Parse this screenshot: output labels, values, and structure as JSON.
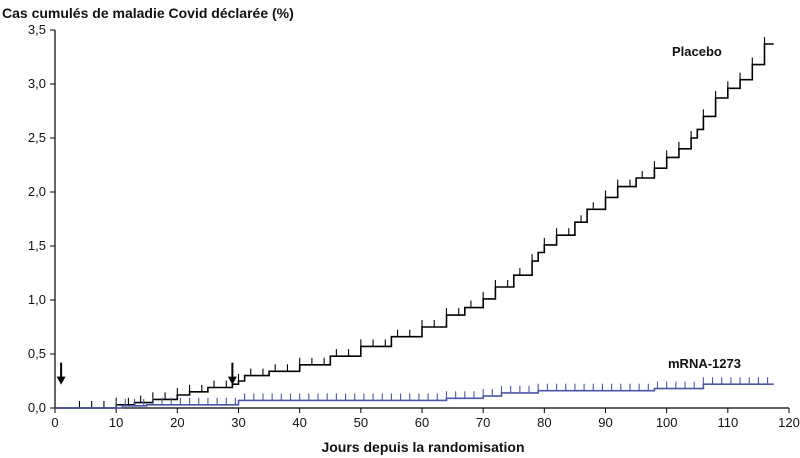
{
  "chart_data": {
    "type": "line",
    "title": "",
    "ylabel": "Cas cumulés de maladie Covid déclarée (%)",
    "xlabel": "Jours depuis la randomisation",
    "xlim": [
      0,
      120
    ],
    "ylim": [
      0,
      3.5
    ],
    "xticks": [
      0,
      10,
      20,
      30,
      40,
      50,
      60,
      70,
      80,
      90,
      100,
      110,
      120
    ],
    "yticks": [
      0,
      0.5,
      1.0,
      1.5,
      2.0,
      2.5,
      3.0,
      3.5
    ],
    "xtick_labels": [
      "0",
      "10",
      "20",
      "30",
      "40",
      "50",
      "60",
      "70",
      "80",
      "90",
      "100",
      "110",
      "120"
    ],
    "ytick_labels": [
      "0,0",
      "0,5",
      "1,0",
      "1,5",
      "2,0",
      "2,5",
      "3,0",
      "3,5"
    ],
    "grid": false,
    "annotations": [
      {
        "type": "arrow",
        "x": 1,
        "y": 0.42
      },
      {
        "type": "arrow",
        "x": 29,
        "y": 0.42
      }
    ],
    "series": [
      {
        "name": "Placebo",
        "color": "#000000",
        "step": "post",
        "x": [
          0,
          10,
          13,
          16,
          20,
          22,
          25,
          29,
          30,
          31,
          35,
          40,
          45,
          50,
          55,
          60,
          64,
          67,
          70,
          72,
          75,
          78,
          79,
          80,
          82,
          85,
          87,
          90,
          92,
          95,
          98,
          100,
          102,
          104,
          105,
          106,
          108,
          110,
          112,
          114,
          116,
          117.5
        ],
        "y": [
          0,
          0.03,
          0.05,
          0.08,
          0.12,
          0.15,
          0.19,
          0.22,
          0.25,
          0.3,
          0.34,
          0.4,
          0.48,
          0.57,
          0.66,
          0.75,
          0.86,
          0.93,
          1.01,
          1.12,
          1.23,
          1.36,
          1.44,
          1.51,
          1.6,
          1.72,
          1.84,
          1.95,
          2.05,
          2.13,
          2.22,
          2.32,
          2.4,
          2.5,
          2.58,
          2.7,
          2.87,
          2.96,
          3.04,
          3.18,
          3.37,
          3.37
        ]
      },
      {
        "name": "mRNA-1273",
        "color": "#4a56a6",
        "step": "post",
        "x": [
          0,
          11,
          15,
          30,
          64,
          70,
          73,
          79,
          98,
          106,
          117.5
        ],
        "y": [
          0,
          0.02,
          0.03,
          0.07,
          0.09,
          0.11,
          0.14,
          0.16,
          0.18,
          0.22,
          0.22
        ]
      }
    ]
  }
}
